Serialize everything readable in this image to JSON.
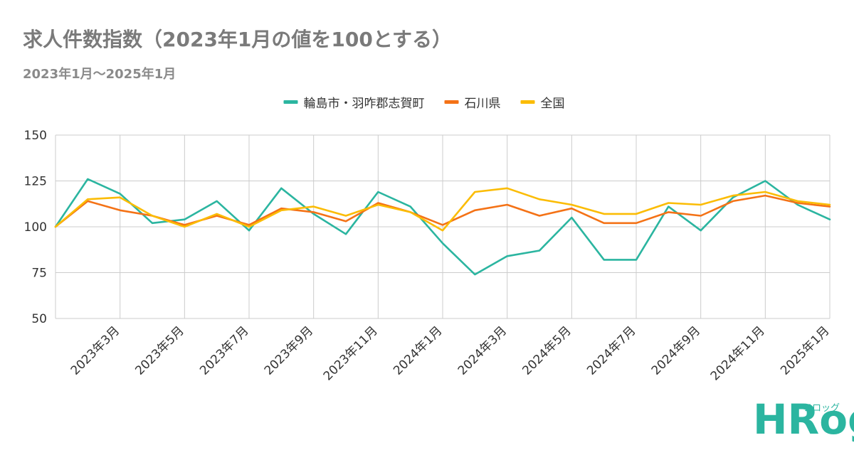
{
  "title": "求人件数指数（2023年1月の値を100とする）",
  "subtitle": "2023年1月〜2025年1月",
  "logo": {
    "text": "HRog",
    "sub": "フロッグ",
    "color": "#2bb5a0"
  },
  "chart_data": {
    "type": "line",
    "x": [
      "2023-01",
      "2023-02",
      "2023-03",
      "2023-04",
      "2023-05",
      "2023-06",
      "2023-07",
      "2023-08",
      "2023-09",
      "2023-10",
      "2023-11",
      "2023-12",
      "2024-01",
      "2024-02",
      "2024-03",
      "2024-04",
      "2024-05",
      "2024-06",
      "2024-07",
      "2024-08",
      "2024-09",
      "2024-10",
      "2024-11",
      "2024-12",
      "2025-01"
    ],
    "tick_labels": [
      "2023年3月",
      "2023年5月",
      "2023年7月",
      "2023年9月",
      "2023年11月",
      "2024年1月",
      "2024年3月",
      "2024年5月",
      "2024年7月",
      "2024年9月",
      "2024年11月",
      "2025年1月"
    ],
    "tick_indices": [
      2,
      4,
      6,
      8,
      10,
      12,
      14,
      16,
      18,
      20,
      22,
      24
    ],
    "ylim": [
      50,
      150
    ],
    "yticks": [
      50,
      75,
      100,
      125,
      150
    ],
    "grid": true,
    "legend_position": "top",
    "series": [
      {
        "name": "輪島市・羽咋郡志賀町",
        "color": "#2bb5a0",
        "values": [
          100,
          126,
          118,
          102,
          104,
          114,
          98,
          121,
          107,
          96,
          119,
          111,
          91,
          74,
          84,
          87,
          105,
          82,
          82,
          111,
          98,
          116,
          125,
          112,
          104
        ]
      },
      {
        "name": "石川県",
        "color": "#f47216",
        "values": [
          100,
          114,
          109,
          106,
          101,
          106,
          101,
          110,
          108,
          103,
          113,
          108,
          101,
          109,
          112,
          106,
          110,
          102,
          102,
          108,
          106,
          114,
          117,
          113,
          111
        ]
      },
      {
        "name": "全国",
        "color": "#fbbc04",
        "values": [
          100,
          115,
          116,
          106,
          100,
          107,
          100,
          109,
          111,
          106,
          112,
          108,
          98,
          119,
          121,
          115,
          112,
          107,
          107,
          113,
          112,
          117,
          119,
          114,
          112
        ]
      }
    ]
  }
}
